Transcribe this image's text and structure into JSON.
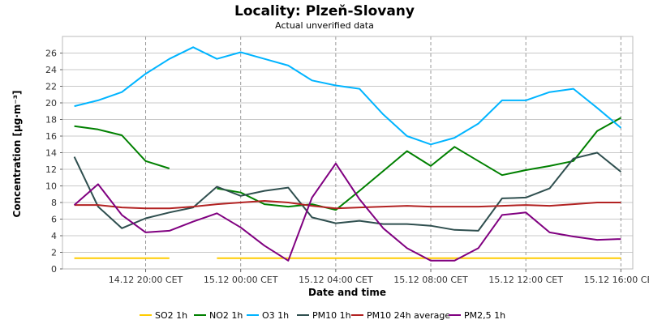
{
  "chart_data": {
    "type": "line",
    "title": "Locality: Plzeň-Slovany",
    "subtitle": "Actual unverified data",
    "xlabel": "Date and time",
    "ylabel": "Concentration [µg·m⁻³]",
    "x": [
      "14.12 17:00",
      "14.12 18:00",
      "14.12 19:00",
      "14.12 20:00",
      "14.12 21:00",
      "14.12 22:00",
      "14.12 23:00",
      "15.12 00:00",
      "15.12 01:00",
      "15.12 02:00",
      "15.12 03:00",
      "15.12 04:00",
      "15.12 05:00",
      "15.12 06:00",
      "15.12 07:00",
      "15.12 08:00",
      "15.12 09:00",
      "15.12 10:00",
      "15.12 11:00",
      "15.12 12:00",
      "15.12 13:00",
      "15.12 14:00",
      "15.12 15:00",
      "15.12 16:00"
    ],
    "x_ticks": [
      "14.12 20:00 CET",
      "15.12 00:00 CET",
      "15.12 04:00 CET",
      "15.12 08:00 CET",
      "15.12 12:00 CET",
      "15.12 16:00 CET"
    ],
    "x_tick_hours": [
      3,
      7,
      11,
      15,
      19,
      23
    ],
    "x_range_hours": [
      -0.5,
      23.5
    ],
    "ylim": [
      0,
      28
    ],
    "y_ticks": [
      0,
      2,
      4,
      6,
      8,
      10,
      12,
      14,
      16,
      18,
      20,
      22,
      24,
      26
    ],
    "grid": true,
    "legend_position": "bottom",
    "series": [
      {
        "name": "SO2 1h",
        "color": "#ffcc00",
        "values": [
          1.3,
          1.3,
          1.3,
          1.3,
          1.3,
          null,
          1.3,
          1.3,
          1.3,
          1.3,
          1.3,
          1.3,
          1.3,
          1.3,
          1.3,
          1.3,
          1.3,
          1.3,
          1.3,
          1.3,
          1.3,
          1.3,
          1.3,
          1.3
        ]
      },
      {
        "name": "NO2 1h",
        "color": "#008000",
        "values": [
          17.2,
          16.8,
          16.1,
          13.0,
          12.1,
          null,
          9.7,
          9.2,
          7.8,
          7.5,
          7.8,
          7.1,
          9.4,
          11.8,
          14.2,
          12.4,
          14.7,
          13.0,
          11.3,
          11.9,
          12.4,
          13.0,
          16.6,
          18.2
        ]
      },
      {
        "name": "O3 1h",
        "color": "#00b4ff",
        "values": [
          19.6,
          20.3,
          21.3,
          23.5,
          25.3,
          26.7,
          25.3,
          26.1,
          25.3,
          24.5,
          22.7,
          22.1,
          21.7,
          18.6,
          16.0,
          15.0,
          15.8,
          17.5,
          20.3,
          20.3,
          21.3,
          21.7,
          19.4,
          17.0
        ]
      },
      {
        "name": "PM10 1h",
        "color": "#2f4f4f",
        "values": [
          13.5,
          7.5,
          4.9,
          6.1,
          6.8,
          7.4,
          9.9,
          8.8,
          9.4,
          9.8,
          6.2,
          5.5,
          5.8,
          5.4,
          5.4,
          5.2,
          4.7,
          4.6,
          8.5,
          8.6,
          9.7,
          13.3,
          14.0,
          11.7
        ]
      },
      {
        "name": "PM10 24h average",
        "color": "#b22222",
        "values": [
          7.7,
          7.7,
          7.4,
          7.3,
          7.3,
          7.5,
          7.8,
          8.0,
          8.2,
          8.0,
          7.6,
          7.3,
          7.4,
          7.5,
          7.6,
          7.5,
          7.5,
          7.5,
          7.6,
          7.7,
          7.6,
          7.8,
          8.0,
          8.0
        ]
      },
      {
        "name": "PM2,5 1h",
        "color": "#800080",
        "values": [
          7.7,
          10.2,
          6.5,
          4.4,
          4.6,
          5.7,
          6.7,
          5.0,
          2.8,
          1.0,
          8.6,
          12.7,
          8.4,
          4.9,
          2.5,
          1.0,
          1.0,
          2.5,
          6.5,
          6.8,
          4.4,
          3.9,
          3.5,
          3.6
        ]
      }
    ]
  }
}
